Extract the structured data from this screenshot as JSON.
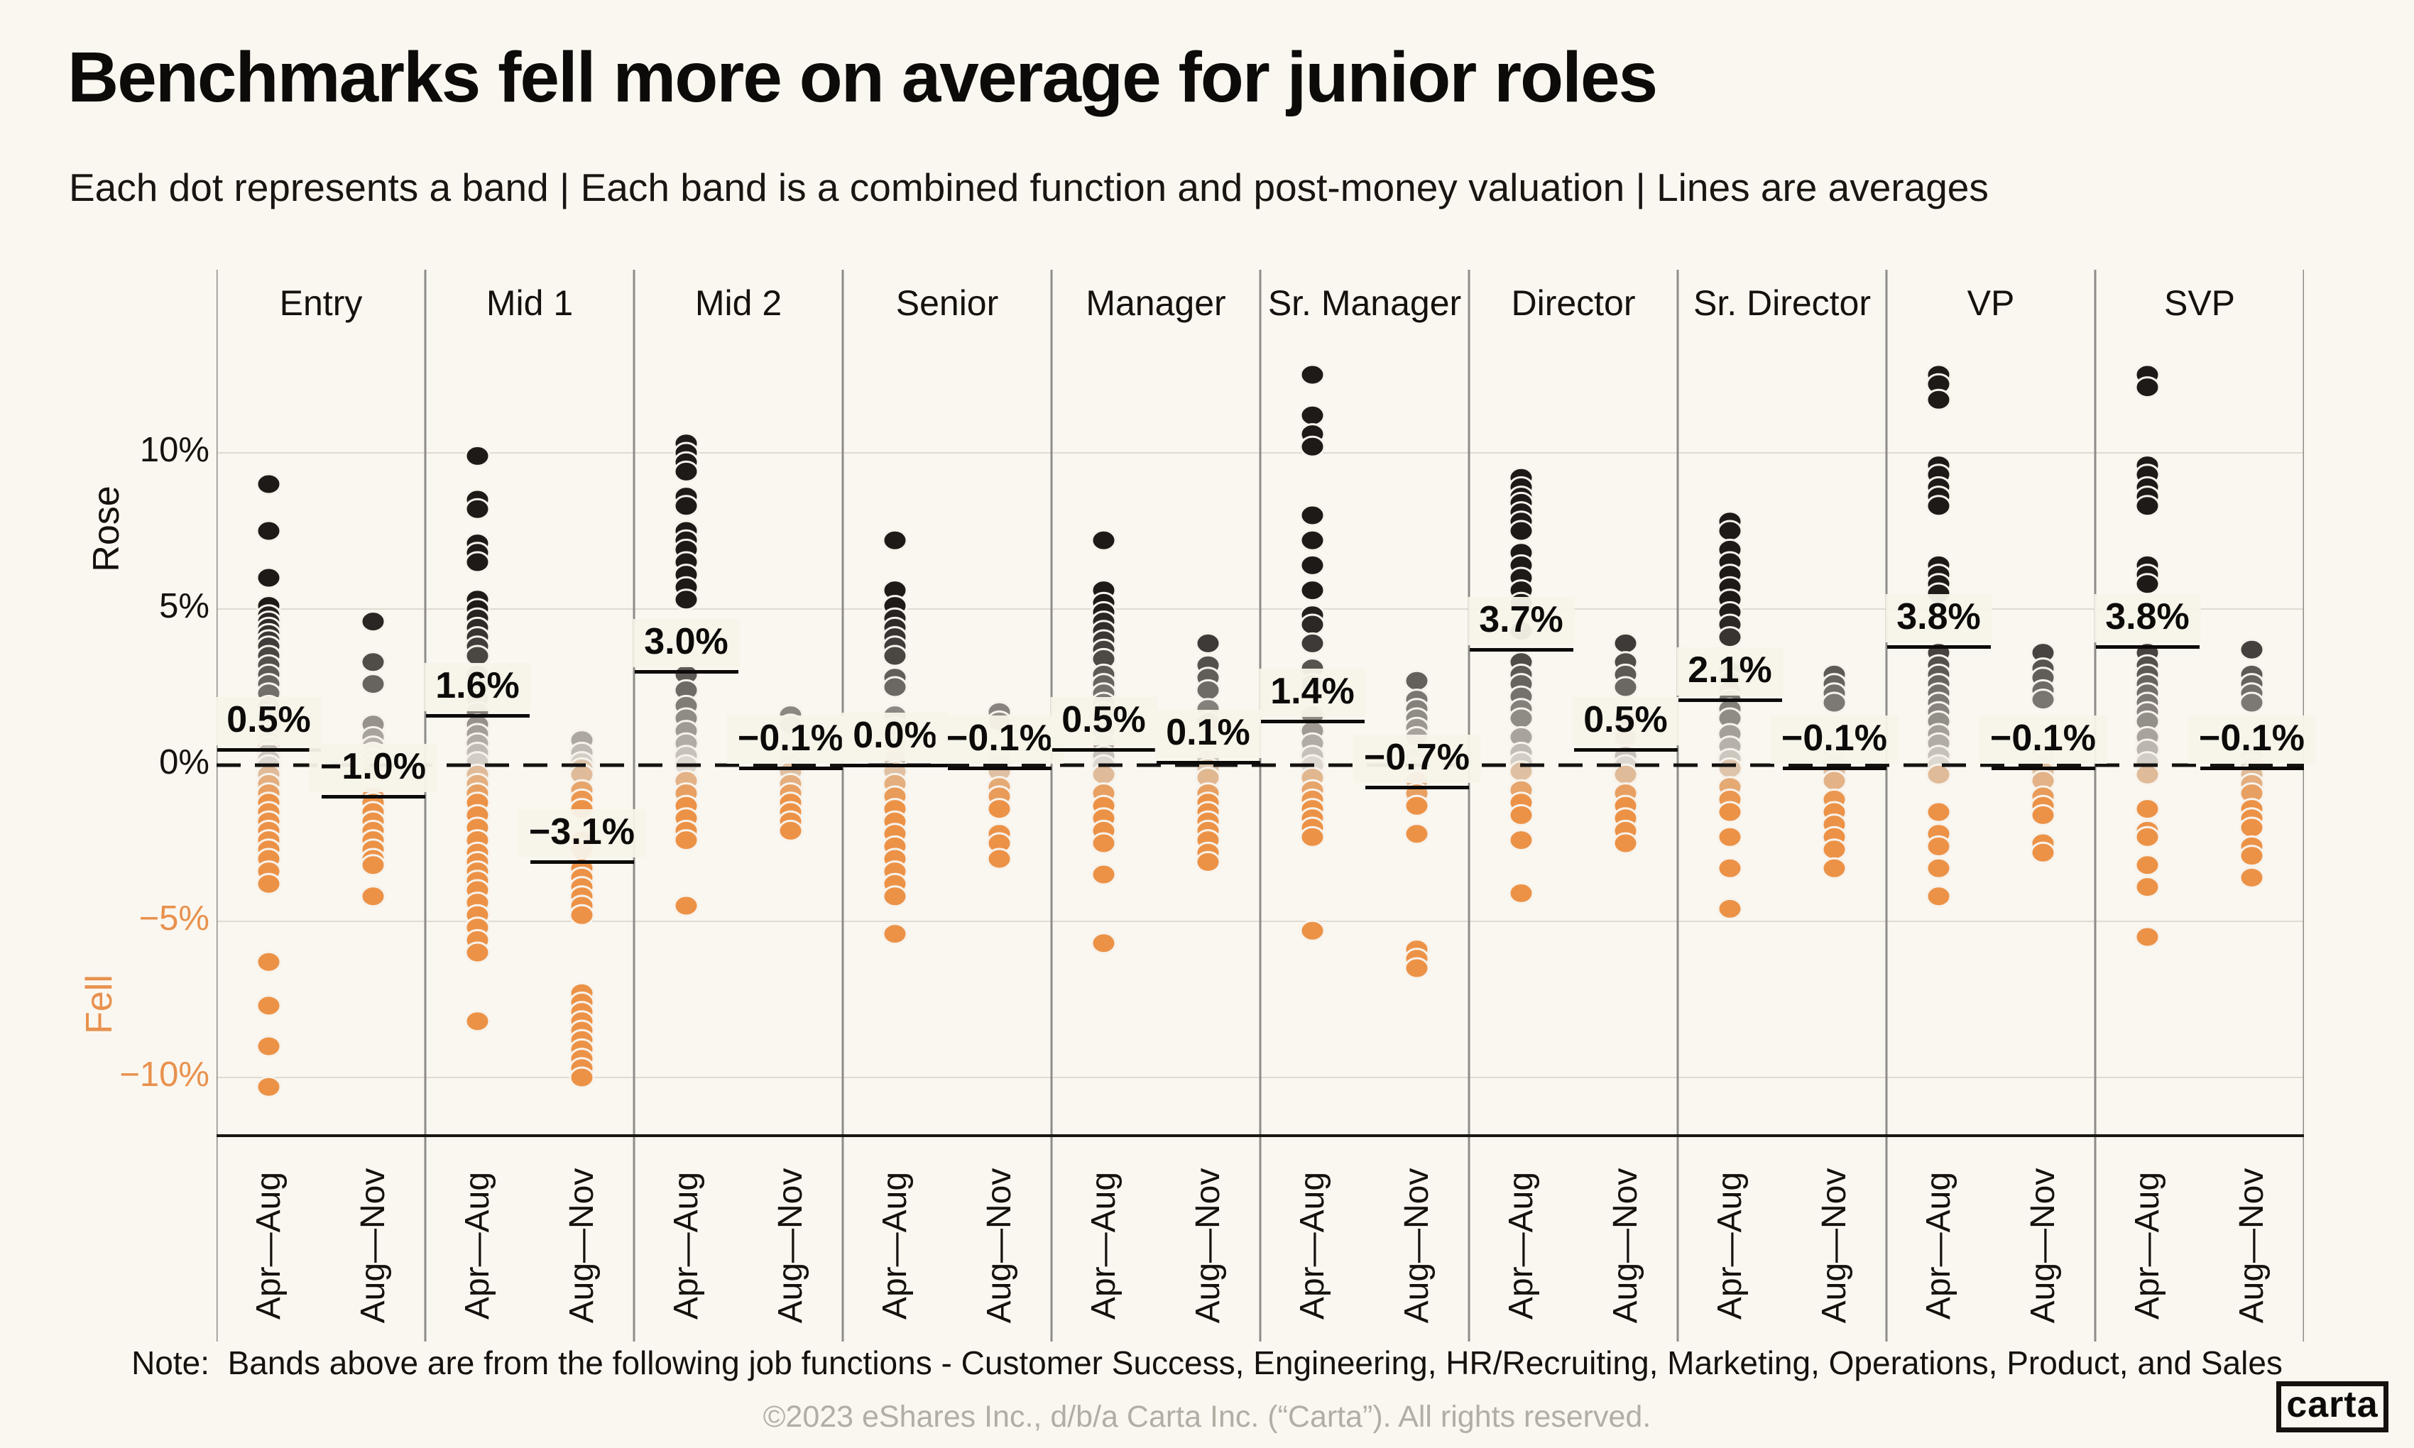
{
  "header": {
    "title": "Benchmarks fell more on average for junior roles",
    "subtitle": "Each dot represents a band | Each band is a combined function and post-money valuation | Lines are averages"
  },
  "note": {
    "prefix": "Note:",
    "text": "Bands above are from the following job functions - Customer Success, Engineering, HR/Recruiting, Marketing, Operations, Product, and Sales"
  },
  "footer": {
    "copyright": "©2023 eShares Inc., d/b/a Carta Inc. (“Carta”). All rights reserved.",
    "logo_text": "carta"
  },
  "colors": {
    "background": "#FAF7F0",
    "dot_orange": "#EC9247",
    "dot_pale_tan": "#DCC9B4",
    "dot_black": "#1D1A18",
    "dot_pale_gray": "#DDD8CF",
    "orange_text": "#E8914E",
    "grid_line": "#DFDAD2",
    "column_separator": "#8E8C89",
    "zero_line": "#151311",
    "average_line": "#0D0B09",
    "label_background": "#F7F3E9",
    "footer_gray": "#B2AEA5"
  },
  "chart_data": {
    "type": "strip",
    "title": "Benchmarks fell more on average for junior roles",
    "ylabel": "",
    "unit": "%",
    "ylim": [
      -11.5,
      13.6
    ],
    "gridlines": [
      10,
      5,
      0,
      -5,
      -10
    ],
    "legend_position": "none",
    "y_axis": {
      "rose_label": "Rose",
      "fell_label": "Fell",
      "ticks": [
        {
          "label": "10%",
          "value": 10,
          "color": "#14110E"
        },
        {
          "label": "5%",
          "value": 5,
          "color": "#14110E"
        },
        {
          "label": "0%",
          "value": 0,
          "color": "#14110E"
        },
        {
          "label": "−5%",
          "value": -5,
          "color": "#E8914E"
        },
        {
          "label": "−10%",
          "value": -10,
          "color": "#E8914E"
        }
      ]
    },
    "periods": [
      "Apr—Aug",
      "Aug—Nov"
    ],
    "groups": [
      {
        "label": "Entry",
        "columns": [
          {
            "period": "Apr—Aug",
            "average_label": "0.5%",
            "average": 0.5,
            "dots": [
              9.0,
              7.5,
              6.0,
              5.1,
              4.8,
              4.6,
              4.4,
              4.2,
              4.0,
              3.8,
              3.5,
              3.2,
              2.9,
              2.6,
              2.3,
              1.9,
              1.6,
              1.3,
              1.0,
              0.8,
              0.6,
              0.4,
              0.2,
              0.0,
              -0.3,
              -0.6,
              -0.9,
              -1.2,
              -1.5,
              -1.8,
              -2.1,
              -2.4,
              -2.7,
              -3.0,
              -3.4,
              -3.8,
              -6.3,
              -7.7,
              -9.0,
              -10.3
            ]
          },
          {
            "period": "Aug—Nov",
            "average_label": "−1.0%",
            "average": -1.0,
            "dots": [
              4.6,
              3.3,
              2.6,
              1.3,
              0.9,
              0.6,
              0.4,
              0.2,
              0.0,
              -0.2,
              -1.0,
              -1.2,
              -1.5,
              -1.8,
              -2.1,
              -2.4,
              -2.7,
              -3.0,
              -3.2,
              -4.2
            ]
          }
        ]
      },
      {
        "label": "Mid 1",
        "columns": [
          {
            "period": "Apr—Aug",
            "average_label": "1.6%",
            "average": 1.6,
            "dots": [
              9.9,
              8.5,
              8.2,
              7.1,
              6.8,
              6.5,
              5.3,
              5.0,
              4.7,
              4.4,
              4.1,
              3.8,
              3.5,
              2.9,
              2.5,
              2.1,
              1.7,
              1.3,
              1.0,
              0.7,
              0.4,
              0.1,
              -0.3,
              -0.6,
              -0.9,
              -1.2,
              -1.6,
              -2.0,
              -2.4,
              -2.8,
              -3.1,
              -3.4,
              -3.7,
              -4.0,
              -4.4,
              -4.8,
              -5.2,
              -5.6,
              -6.0,
              -8.2
            ]
          },
          {
            "period": "Aug—Nov",
            "average_label": "−3.1%",
            "average": -3.1,
            "dots": [
              0.8,
              0.4,
              0.1,
              -0.1,
              -0.3,
              -0.8,
              -1.1,
              -1.4,
              -2.4,
              -2.7,
              -3.3,
              -3.6,
              -3.9,
              -4.2,
              -4.5,
              -4.8,
              -7.3,
              -7.6,
              -7.9,
              -8.2,
              -8.5,
              -8.8,
              -9.1,
              -9.4,
              -9.7,
              -10.0
            ]
          }
        ]
      },
      {
        "label": "Mid 2",
        "columns": [
          {
            "period": "Apr—Aug",
            "average_label": "3.0%",
            "average": 3.0,
            "dots": [
              10.3,
              10.0,
              9.7,
              9.4,
              8.6,
              8.3,
              7.5,
              7.2,
              6.9,
              6.5,
              6.1,
              5.7,
              5.3,
              2.9,
              2.4,
              1.9,
              1.5,
              1.1,
              0.7,
              0.3,
              0.0,
              -0.5,
              -0.9,
              -1.3,
              -1.7,
              -2.1,
              -2.4,
              -4.5
            ]
          },
          {
            "period": "Aug—Nov",
            "average_label": "−0.1%",
            "average": -0.1,
            "dots": [
              1.6,
              1.3,
              0.4,
              0.1,
              -0.2,
              -0.6,
              -0.9,
              -1.2,
              -1.5,
              -1.8,
              -2.1
            ]
          }
        ]
      },
      {
        "label": "Senior",
        "columns": [
          {
            "period": "Apr—Aug",
            "average_label": "0.0%",
            "average": 0.0,
            "dots": [
              7.2,
              5.6,
              5.1,
              4.7,
              4.4,
              4.1,
              3.8,
              3.5,
              2.8,
              2.5,
              1.6,
              1.2,
              0.6,
              0.2,
              -0.2,
              -0.6,
              -1.0,
              -1.4,
              -1.8,
              -2.2,
              -2.6,
              -3.0,
              -3.4,
              -3.8,
              -4.2,
              -5.4
            ]
          },
          {
            "period": "Aug—Nov",
            "average_label": "−0.1%",
            "average": -0.1,
            "dots": [
              1.7,
              1.4,
              0.4,
              0.1,
              -0.2,
              -0.7,
              -1.0,
              -1.4,
              -2.2,
              -2.5,
              -3.0
            ]
          }
        ]
      },
      {
        "label": "Manager",
        "columns": [
          {
            "period": "Apr—Aug",
            "average_label": "0.5%",
            "average": 0.5,
            "dots": [
              7.2,
              5.6,
              5.2,
              4.9,
              4.6,
              4.3,
              4.0,
              3.7,
              3.4,
              2.9,
              2.6,
              2.3,
              2.0,
              1.7,
              1.1,
              0.7,
              0.3,
              0.0,
              -0.3,
              -0.9,
              -1.3,
              -1.7,
              -2.1,
              -2.5,
              -3.5,
              -5.7
            ]
          },
          {
            "period": "Aug—Nov",
            "average_label": "0.1%",
            "average": 0.1,
            "dots": [
              3.9,
              3.2,
              2.8,
              2.4,
              1.8,
              1.4,
              0.5,
              0.2,
              -0.1,
              -0.4,
              -0.9,
              -1.2,
              -1.5,
              -1.8,
              -2.1,
              -2.4,
              -2.8,
              -3.1
            ]
          }
        ]
      },
      {
        "label": "Sr. Manager",
        "columns": [
          {
            "period": "Apr—Aug",
            "average_label": "1.4%",
            "average": 1.4,
            "dots": [
              12.5,
              11.2,
              10.6,
              10.2,
              8.0,
              7.2,
              6.4,
              5.6,
              4.8,
              4.5,
              3.9,
              3.1,
              2.6,
              1.6,
              1.1,
              0.7,
              0.3,
              0.0,
              -0.4,
              -0.8,
              -1.1,
              -1.4,
              -1.7,
              -2.0,
              -2.3,
              -5.3
            ]
          },
          {
            "period": "Aug—Nov",
            "average_label": "−0.7%",
            "average": -0.7,
            "dots": [
              2.7,
              2.1,
              1.8,
              1.5,
              1.2,
              0.9,
              0.3,
              -0.1,
              -0.5,
              -0.9,
              -1.3,
              -2.2,
              -5.9,
              -6.2,
              -6.5
            ]
          }
        ]
      },
      {
        "label": "Director",
        "columns": [
          {
            "period": "Apr—Aug",
            "average_label": "3.7%",
            "average": 3.7,
            "dots": [
              9.2,
              8.9,
              8.6,
              8.4,
              8.1,
              7.8,
              7.5,
              6.8,
              6.4,
              6.0,
              5.6,
              5.2,
              4.3,
              3.3,
              2.9,
              2.6,
              2.2,
              1.8,
              1.5,
              0.9,
              0.4,
              0.1,
              -0.2,
              -0.8,
              -1.2,
              -1.6,
              -2.4,
              -4.1
            ]
          },
          {
            "period": "Aug—Nov",
            "average_label": "0.5%",
            "average": 0.5,
            "dots": [
              3.9,
              3.3,
              2.9,
              2.5,
              1.4,
              0.9,
              0.3,
              0.0,
              -0.3,
              -0.9,
              -1.3,
              -1.7,
              -2.1,
              -2.5
            ]
          }
        ]
      },
      {
        "label": "Sr. Director",
        "columns": [
          {
            "period": "Apr—Aug",
            "average_label": "2.1%",
            "average": 2.1,
            "dots": [
              7.8,
              7.5,
              6.9,
              6.5,
              6.1,
              5.7,
              5.3,
              4.9,
              4.5,
              4.1,
              3.0,
              2.7,
              2.4,
              2.1,
              1.8,
              1.5,
              1.0,
              0.6,
              0.2,
              -0.1,
              -0.7,
              -1.1,
              -1.5,
              -2.3,
              -3.3,
              -4.6
            ]
          },
          {
            "period": "Aug—Nov",
            "average_label": "−0.1%",
            "average": -0.1,
            "dots": [
              2.9,
              2.6,
              2.3,
              2.0,
              0.4,
              0.1,
              -0.2,
              -0.5,
              -1.1,
              -1.5,
              -1.9,
              -2.3,
              -2.7,
              -3.3
            ]
          }
        ]
      },
      {
        "label": "VP",
        "columns": [
          {
            "period": "Apr—Aug",
            "average_label": "3.8%",
            "average": 3.8,
            "dots": [
              12.5,
              12.2,
              11.7,
              9.6,
              9.3,
              8.9,
              8.6,
              8.3,
              6.4,
              6.1,
              5.8,
              5.5,
              3.6,
              3.2,
              2.9,
              2.6,
              2.3,
              2.0,
              1.7,
              1.4,
              1.0,
              0.7,
              0.3,
              0.0,
              -0.3,
              -1.5,
              -2.2,
              -2.6,
              -3.3,
              -4.2
            ]
          },
          {
            "period": "Aug—Nov",
            "average_label": "−0.1%",
            "average": -0.1,
            "dots": [
              3.6,
              3.1,
              2.8,
              2.4,
              2.1,
              0.4,
              0.1,
              -0.2,
              -0.5,
              -1.0,
              -1.3,
              -1.6,
              -2.5,
              -2.8
            ]
          }
        ]
      },
      {
        "label": "SVP",
        "columns": [
          {
            "period": "Apr—Aug",
            "average_label": "3.8%",
            "average": 3.8,
            "dots": [
              12.5,
              12.1,
              9.6,
              9.3,
              8.9,
              8.6,
              8.3,
              6.4,
              6.1,
              5.8,
              3.6,
              3.2,
              2.9,
              2.6,
              2.3,
              2.0,
              1.7,
              1.4,
              0.9,
              0.5,
              0.1,
              -0.3,
              -1.4,
              -2.1,
              -2.3,
              -3.2,
              -3.9,
              -5.5
            ]
          },
          {
            "period": "Aug—Nov",
            "average_label": "−0.1%",
            "average": -0.1,
            "dots": [
              3.7,
              2.9,
              2.6,
              2.3,
              2.0,
              0.3,
              0.0,
              -0.3,
              -0.6,
              -0.9,
              -1.4,
              -1.7,
              -2.0,
              -2.6,
              -2.9,
              -3.6
            ]
          }
        ]
      }
    ]
  }
}
